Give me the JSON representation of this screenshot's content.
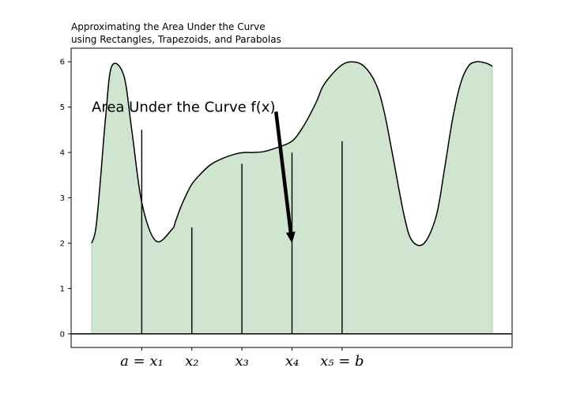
{
  "chart_data": {
    "type": "area",
    "title": "Approximating the Area Under the Curve\nusing Rectangles, Trapezoids, and Parabolas",
    "xlim": [
      0,
      10
    ],
    "ylim": [
      -0.3,
      6.3
    ],
    "grid": false,
    "y_ticks": [
      0,
      1,
      2,
      3,
      4,
      5,
      6
    ],
    "x": [
      0.0,
      0.1,
      0.2,
      0.35,
      0.5,
      0.8,
      1.0,
      1.25,
      1.6,
      2.0,
      2.1,
      2.25,
      2.5,
      2.8,
      3.0,
      3.3,
      3.6,
      3.8,
      4.0,
      4.3,
      4.6,
      5.0,
      5.3,
      5.6,
      5.8,
      6.2,
      6.5,
      6.8,
      7.1,
      7.3,
      7.5,
      7.8,
      8.0,
      8.3,
      8.6,
      8.8,
      9.0,
      9.2,
      9.4,
      9.6,
      9.8,
      9.9,
      10.0
    ],
    "y": [
      2.0,
      2.3,
      3.2,
      4.8,
      5.9,
      5.7,
      4.5,
      2.9,
      2.05,
      2.3,
      2.5,
      2.85,
      3.3,
      3.6,
      3.75,
      3.88,
      3.97,
      4.0,
      4.0,
      4.02,
      4.1,
      4.25,
      4.6,
      5.1,
      5.5,
      5.9,
      6.0,
      5.9,
      5.5,
      4.9,
      4.0,
      2.6,
      2.05,
      2.0,
      2.6,
      3.6,
      4.7,
      5.5,
      5.9,
      6.0,
      5.98,
      5.95,
      5.9
    ],
    "partition_x": [
      1.25,
      2.5,
      3.75,
      5.0,
      6.25
    ],
    "partition_y": [
      4.5,
      2.35,
      3.75,
      4.0,
      4.25
    ],
    "x_tick_labels": [
      "a = x₁",
      "x₂",
      "x₃",
      "x₄",
      "x₅ = b"
    ],
    "annotation": {
      "text": "Area Under the Curve f(x)",
      "text_xy": [
        0.0,
        5.0
      ],
      "arrow_xy": [
        5.0,
        2.0
      ],
      "arrow_from": [
        4.6,
        4.9
      ]
    },
    "fill_color": "#cfe5cf",
    "fill_edge_color": "#a8d1a8",
    "line_color": "#000000"
  }
}
